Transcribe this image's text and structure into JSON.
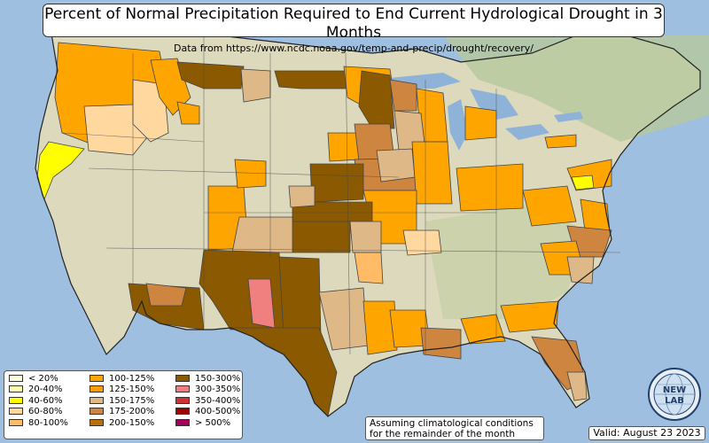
{
  "title": "Percent of Normal Precipitation Required to End Current Hydrological Drought in 3 Months",
  "subtitle": "Data from https://www.ncdc.noaa.gov/temp-and-precip/drought/recovery/",
  "note_line1": "Assuming climatological conditions",
  "note_line2": "for the remainder of the month",
  "valid_text": "Valid: August 23 2023",
  "logo": {
    "text_top": "NEW",
    "text_bottom": "LAB",
    "icon": "globe-logo-icon"
  },
  "legend": [
    {
      "label": "< 20%",
      "color": "#fdfde0"
    },
    {
      "label": "20-40%",
      "color": "#ffffb0"
    },
    {
      "label": "40-60%",
      "color": "#ffff00"
    },
    {
      "label": "60-80%",
      "color": "#ffd8a0"
    },
    {
      "label": "80-100%",
      "color": "#ffbb66"
    },
    {
      "label": "100-125%",
      "color": "#ffa500"
    },
    {
      "label": "125-150%",
      "color": "#ff9a00"
    },
    {
      "label": "150-175%",
      "color": "#deb887"
    },
    {
      "label": "175-200%",
      "color": "#cd853f"
    },
    {
      "label": "200-150%",
      "color": "#b8700f"
    },
    {
      "label": "150-300%",
      "color": "#8b5a00"
    },
    {
      "label": "300-350%",
      "color": "#f08080"
    },
    {
      "label": "350-400%",
      "color": "#cd3333"
    },
    {
      "label": "400-500%",
      "color": "#a00000"
    },
    {
      "label": "> 500%",
      "color": "#a0005a"
    }
  ],
  "colors": {
    "ocean": "#9fbfe0",
    "land": "#dcd9bc",
    "land_green": "#b7c89c",
    "lake": "#8fb3d8",
    "border": "#444444"
  }
}
